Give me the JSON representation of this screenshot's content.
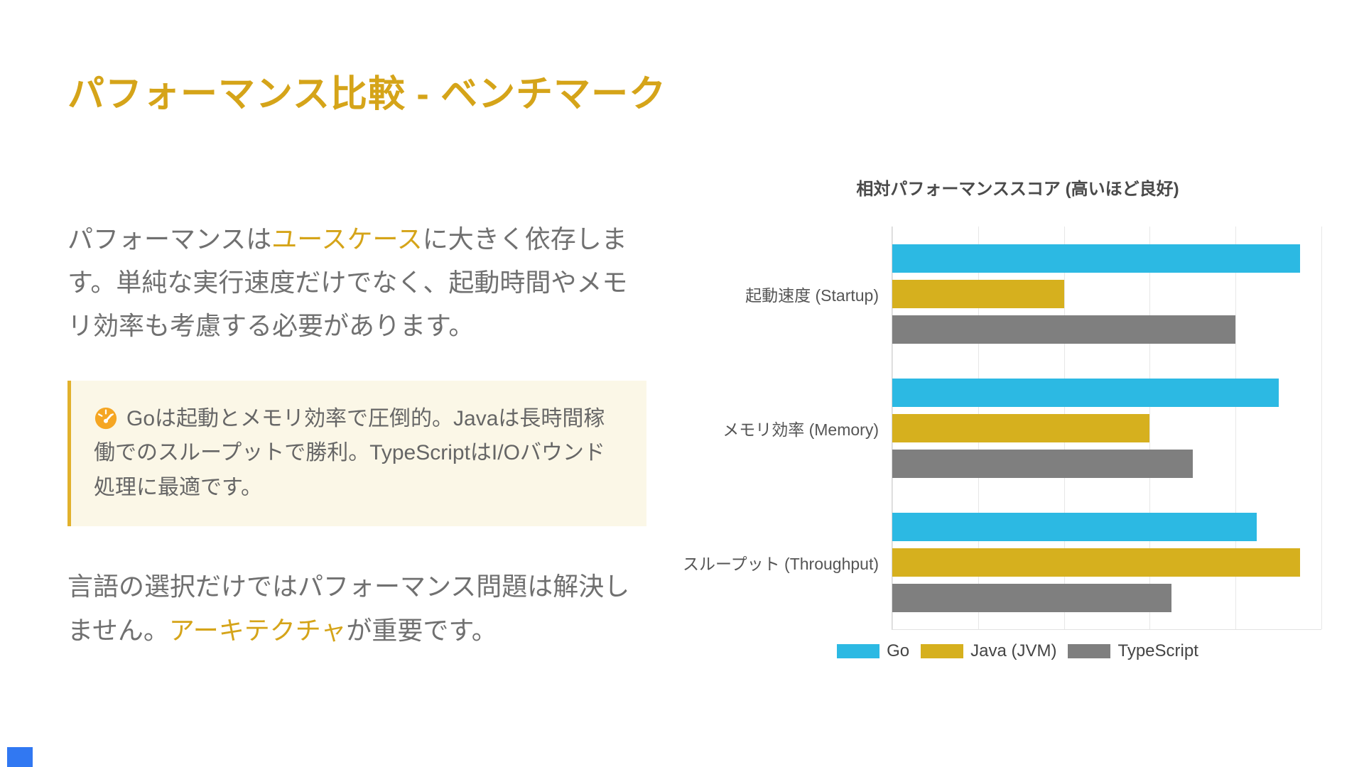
{
  "slide": {
    "title": "パフォーマンス比較 - ベンチマーク",
    "accent_color": "#D5A419"
  },
  "intro": {
    "pre": "パフォーマンスは",
    "highlight": "ユースケース",
    "post": "に大きく依存します。単純な実行速度だけでなく、起動時間やメモリ効率も考慮する必要があります。"
  },
  "callout": {
    "icon": "gauge-icon",
    "text": "Goは起動とメモリ効率で圧倒的。Javaは長時間稼働でのスループットで勝利。TypeScriptはI/Oバウンド処理に最適です。",
    "background": "#FBF7E7",
    "border_color": "#E2B12C"
  },
  "outro": {
    "pre": "言語の選択だけではパフォーマンス問題は解決しません。",
    "highlight": "アーキテクチャ",
    "post": "が重要です。"
  },
  "chart_data": {
    "type": "bar",
    "orientation": "horizontal",
    "title": "相対パフォーマンススコア (高いほど良好)",
    "categories": [
      "起動速度 (Startup)",
      "メモリ効率 (Memory)",
      "スループット (Throughput)"
    ],
    "series": [
      {
        "name": "Go",
        "color": "#2CB9E3",
        "values": [
          95,
          90,
          85
        ]
      },
      {
        "name": "Java (JVM)",
        "color": "#D6B01E",
        "values": [
          40,
          60,
          95
        ]
      },
      {
        "name": "TypeScript",
        "color": "#7F7F7F",
        "values": [
          80,
          70,
          65
        ]
      }
    ],
    "xlim": [
      0,
      100
    ],
    "grid": true,
    "gridline_step": 20,
    "legend_position": "bottom"
  }
}
